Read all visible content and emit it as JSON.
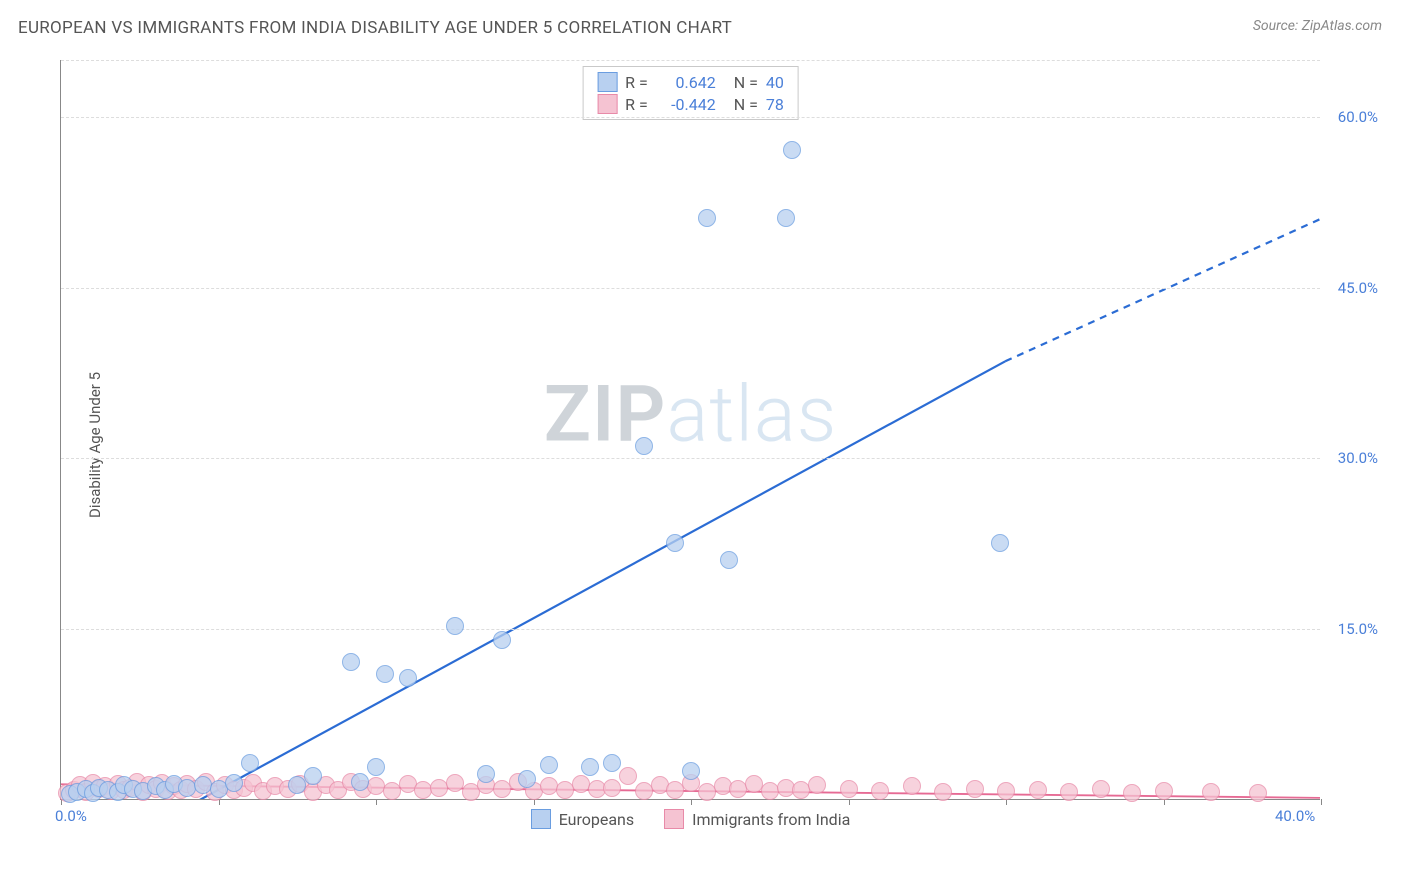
{
  "header": {
    "title": "EUROPEAN VS IMMIGRANTS FROM INDIA DISABILITY AGE UNDER 5 CORRELATION CHART",
    "source": "Source: ZipAtlas.com"
  },
  "chart": {
    "type": "scatter",
    "ylabel": "Disability Age Under 5",
    "xlim": [
      0,
      40
    ],
    "ylim": [
      0,
      65
    ],
    "yticks": [
      15,
      30,
      45,
      60
    ],
    "ytick_labels": [
      "15.0%",
      "30.0%",
      "45.0%",
      "60.0%"
    ],
    "xticks": [
      0,
      5,
      10,
      15,
      20,
      25,
      30,
      35,
      40
    ],
    "xtick_labels_shown": {
      "0": "0.0%",
      "40": "40.0%"
    },
    "background_color": "#ffffff",
    "grid_color": "#dddddd",
    "axis_color": "#888888",
    "tick_label_color": "#4a7fd8",
    "marker_radius": 9,
    "series": {
      "europeans": {
        "label": "Europeans",
        "fill": "#b8d0f0",
        "stroke": "#6a9de0",
        "opacity": 0.75,
        "trend_color": "#2b6cd4",
        "trend_width": 2.2,
        "trend_solid": {
          "x1": 3.8,
          "y1": -1.0,
          "x2": 30.0,
          "y2": 38.5
        },
        "trend_dash": {
          "x1": 30.0,
          "y1": 38.5,
          "x2": 40.0,
          "y2": 51.0
        },
        "points": [
          [
            0.3,
            0.4
          ],
          [
            0.5,
            0.6
          ],
          [
            0.8,
            0.9
          ],
          [
            1.0,
            0.5
          ],
          [
            1.2,
            1.0
          ],
          [
            1.5,
            0.8
          ],
          [
            1.8,
            0.6
          ],
          [
            2.0,
            1.2
          ],
          [
            2.3,
            0.9
          ],
          [
            2.6,
            0.7
          ],
          [
            3.0,
            1.1
          ],
          [
            3.3,
            0.8
          ],
          [
            3.6,
            1.3
          ],
          [
            4.0,
            1.0
          ],
          [
            4.5,
            1.2
          ],
          [
            5.0,
            0.9
          ],
          [
            5.5,
            1.4
          ],
          [
            6.0,
            3.2
          ],
          [
            7.5,
            1.2
          ],
          [
            8.0,
            2.0
          ],
          [
            9.2,
            12.0
          ],
          [
            9.5,
            1.5
          ],
          [
            10.0,
            2.8
          ],
          [
            10.3,
            11.0
          ],
          [
            11.0,
            10.6
          ],
          [
            12.5,
            15.2
          ],
          [
            13.5,
            2.2
          ],
          [
            14.8,
            1.8
          ],
          [
            14.0,
            14.0
          ],
          [
            15.5,
            3.0
          ],
          [
            16.8,
            2.8
          ],
          [
            17.5,
            3.2
          ],
          [
            18.5,
            31.0
          ],
          [
            19.5,
            22.5
          ],
          [
            20.0,
            2.5
          ],
          [
            20.5,
            51.0
          ],
          [
            21.2,
            21.0
          ],
          [
            23.0,
            51.0
          ],
          [
            23.2,
            57.0
          ],
          [
            29.8,
            22.5
          ]
        ]
      },
      "india": {
        "label": "Immigrants from India",
        "fill": "#f5c3d2",
        "stroke": "#e88aa8",
        "opacity": 0.75,
        "trend_color": "#e66a94",
        "trend_width": 1.8,
        "trend_solid": {
          "x1": 0.0,
          "y1": 1.3,
          "x2": 40.0,
          "y2": 0.1
        },
        "points": [
          [
            0.2,
            0.5
          ],
          [
            0.4,
            0.8
          ],
          [
            0.6,
            1.2
          ],
          [
            0.8,
            0.6
          ],
          [
            1.0,
            1.4
          ],
          [
            1.2,
            0.9
          ],
          [
            1.4,
            1.1
          ],
          [
            1.6,
            0.7
          ],
          [
            1.8,
            1.3
          ],
          [
            2.0,
            0.8
          ],
          [
            2.2,
            1.0
          ],
          [
            2.4,
            1.5
          ],
          [
            2.6,
            0.6
          ],
          [
            2.8,
            1.2
          ],
          [
            3.0,
            0.9
          ],
          [
            3.2,
            1.4
          ],
          [
            3.4,
            0.7
          ],
          [
            3.6,
            1.1
          ],
          [
            3.8,
            0.8
          ],
          [
            4.0,
            1.3
          ],
          [
            4.3,
            0.9
          ],
          [
            4.6,
            1.5
          ],
          [
            4.9,
            0.6
          ],
          [
            5.2,
            1.2
          ],
          [
            5.5,
            0.8
          ],
          [
            5.8,
            1.0
          ],
          [
            6.1,
            1.4
          ],
          [
            6.4,
            0.7
          ],
          [
            6.8,
            1.1
          ],
          [
            7.2,
            0.9
          ],
          [
            7.6,
            1.3
          ],
          [
            8.0,
            0.6
          ],
          [
            8.4,
            1.2
          ],
          [
            8.8,
            0.8
          ],
          [
            9.2,
            1.5
          ],
          [
            9.6,
            0.9
          ],
          [
            10.0,
            1.1
          ],
          [
            10.5,
            0.7
          ],
          [
            11.0,
            1.3
          ],
          [
            11.5,
            0.8
          ],
          [
            12.0,
            1.0
          ],
          [
            12.5,
            1.4
          ],
          [
            13.0,
            0.6
          ],
          [
            13.5,
            1.2
          ],
          [
            14.0,
            0.9
          ],
          [
            14.5,
            1.5
          ],
          [
            15.0,
            0.7
          ],
          [
            15.5,
            1.1
          ],
          [
            16.0,
            0.8
          ],
          [
            16.5,
            1.3
          ],
          [
            17.0,
            0.9
          ],
          [
            17.5,
            1.0
          ],
          [
            18.0,
            2.0
          ],
          [
            18.5,
            0.7
          ],
          [
            19.0,
            1.2
          ],
          [
            19.5,
            0.8
          ],
          [
            20.0,
            1.4
          ],
          [
            20.5,
            0.6
          ],
          [
            21.0,
            1.1
          ],
          [
            21.5,
            0.9
          ],
          [
            22.0,
            1.3
          ],
          [
            22.5,
            0.7
          ],
          [
            23.0,
            1.0
          ],
          [
            23.5,
            0.8
          ],
          [
            24.0,
            1.2
          ],
          [
            25.0,
            0.9
          ],
          [
            26.0,
            0.7
          ],
          [
            27.0,
            1.1
          ],
          [
            28.0,
            0.6
          ],
          [
            29.0,
            0.9
          ],
          [
            30.0,
            0.7
          ],
          [
            31.0,
            0.8
          ],
          [
            32.0,
            0.6
          ],
          [
            33.0,
            0.9
          ],
          [
            34.0,
            0.5
          ],
          [
            35.0,
            0.7
          ],
          [
            36.5,
            0.6
          ],
          [
            38.0,
            0.5
          ]
        ]
      }
    },
    "legend_top": [
      {
        "swatch_fill": "#b8d0f0",
        "swatch_stroke": "#6a9de0",
        "r_label": "R =",
        "r_val": "0.642",
        "n_label": "N =",
        "n_val": "40"
      },
      {
        "swatch_fill": "#f5c3d2",
        "swatch_stroke": "#e88aa8",
        "r_label": "R =",
        "r_val": "-0.442",
        "n_label": "N =",
        "n_val": "78"
      }
    ],
    "watermark": {
      "text_bold": "ZIP",
      "text_light": "atlas",
      "color_bold": "#cfd4d9",
      "color_light": "#d9e6f2"
    }
  }
}
